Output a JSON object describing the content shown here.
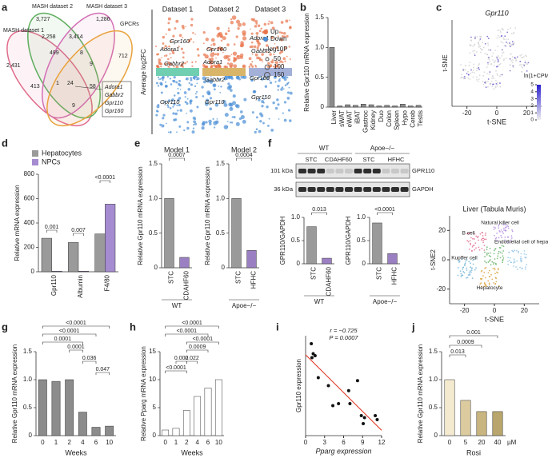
{
  "panel_labels": [
    "a",
    "b",
    "c",
    "d",
    "e",
    "f",
    "g",
    "h",
    "i",
    "j"
  ],
  "chart_data": [
    {
      "type": "venn",
      "set_labels": [
        "MASH dataset 1",
        "MASH dataset 2",
        "MASH dataset 3",
        "GPCRs"
      ],
      "counts": [
        "3,727",
        "1,286",
        "2,431",
        "2,258",
        "3,414",
        "712",
        "499",
        "8",
        "9",
        "413",
        "1",
        "24",
        "58",
        "9"
      ],
      "genes": [
        "Adora1",
        "Gabbr2",
        "Gpr110",
        "Gpr160"
      ]
    },
    {
      "type": "volcano",
      "datasets": [
        "Dataset 1",
        "Dataset 2",
        "Dataset 3"
      ],
      "ylabel": "Average log2FC",
      "gene_labels": [
        "Adora1",
        "Gpr160",
        "Gabbr2",
        "Gpr110",
        "Gpr160",
        "Adora1",
        "Gabbr2",
        "Gpr110",
        "Adora1",
        "Gabbr2",
        "Gpr160",
        "Gpr110"
      ],
      "legend": [
        "Up",
        "Down"
      ],
      "legend_colors": [
        "#e8734a",
        "#4a8fd6"
      ],
      "size_title": "−log10P",
      "size_ticks": [
        50,
        100,
        150
      ]
    },
    {
      "type": "bar",
      "ylabel": "Relative Gpr110 mRNA expression",
      "categories": [
        "Liver",
        "sWAT",
        "eWAT",
        "iBAT",
        "Gastroc",
        "Kidney",
        "Duo",
        "Colon",
        "Spleen",
        "Hypo",
        "Cereb",
        "Testis"
      ],
      "values": [
        1.0,
        0.02,
        0.04,
        0.03,
        0.05,
        0.04,
        0.02,
        0.03,
        0.02,
        0.05,
        0.02,
        0.03
      ],
      "color": "#8c8c8c",
      "ylim": [
        0,
        1.5
      ],
      "yticks": [
        0,
        0.5,
        {
          "value": 1,
          "label": "1.0"
        },
        1.5
      ]
    },
    {
      "type": "tsne",
      "title": "Gpr110",
      "xlabel": "t-SNE",
      "ylabel": "t-SNE",
      "xlim": [
        -30,
        30
      ],
      "xticks": [
        -20,
        0,
        20
      ],
      "legend_title": "ln(1+CPM)",
      "colorbar_ticks": [
        0,
        1,
        2,
        3,
        4,
        5
      ]
    },
    {
      "type": "bar",
      "ylabel": "Relative mRNA expression",
      "categories": [
        "Gpr110",
        "Albumin",
        "F4/80"
      ],
      "series": [
        {
          "name": "Hepatocytes",
          "color": "#9a9a9a",
          "values": [
            275,
            240,
            310
          ]
        },
        {
          "name": "NPCs",
          "color": "#a58bd0",
          "values": [
            5,
            5,
            555
          ]
        }
      ],
      "ylim": [
        0,
        800
      ],
      "yticks": [
        0,
        200,
        400,
        600,
        800
      ],
      "annotations": [
        "0.001",
        "0.007",
        "<0.0001"
      ]
    },
    {
      "type": "bar",
      "title": "Model 1",
      "ylabel": "Relative Gpr110 mRNA expression",
      "categories": [
        "STC",
        "CDAHF60"
      ],
      "values": [
        1.0,
        0.15
      ],
      "colors": [
        "#9a9a9a",
        "#9b7fc3"
      ],
      "ylim": [
        0,
        1.5
      ],
      "yticks": [
        0,
        0.5,
        {
          "value": 1,
          "label": "1.0"
        },
        1.5
      ],
      "annotations": [
        "0.0007"
      ],
      "group_label": "WT"
    },
    {
      "type": "bar",
      "title": "Model 2",
      "ylabel": "Relative Gpr110 mRNA expression",
      "categories": [
        "STC",
        "HFHC"
      ],
      "values": [
        1.0,
        0.25
      ],
      "colors": [
        "#9a9a9a",
        "#9b7fc3"
      ],
      "ylim": [
        0,
        1.5
      ],
      "yticks": [
        0,
        0.5,
        {
          "value": 1,
          "label": "1.0"
        },
        1.5
      ],
      "annotations": [
        "0.0004"
      ],
      "group_label": "Apoe−/−"
    },
    {
      "type": "blot",
      "groups": [
        "WT",
        "Apoe−/−"
      ],
      "lanes": [
        "STC",
        "CDAHF60",
        "STC",
        "HFHC"
      ],
      "markers": [
        "101 kDa",
        "36 kDa"
      ],
      "bands": [
        "GPR110",
        "GAPDH"
      ]
    },
    {
      "type": "bar",
      "ylabel": "GPR110/GAPDH",
      "categories": [
        "STC",
        "CDAHF60"
      ],
      "values": [
        0.8,
        0.12
      ],
      "colors": [
        "#9a9a9a",
        "#9b7fc3"
      ],
      "ylim": [
        0,
        1.0
      ],
      "yticks": [
        0,
        0.5,
        {
          "value": 1,
          "label": "1.0"
        }
      ],
      "annotations": [
        "0.013"
      ],
      "group_label": "WT"
    },
    {
      "type": "bar",
      "ylabel": "GPR110/GAPDH",
      "categories": [
        "STC",
        "HFHC"
      ],
      "values": [
        0.88,
        0.22
      ],
      "colors": [
        "#9a9a9a",
        "#9b7fc3"
      ],
      "ylim": [
        0,
        1.0
      ],
      "yticks": [
        0,
        0.5,
        {
          "value": 1,
          "label": "1.0"
        }
      ],
      "annotations": [
        "<0.0001"
      ],
      "group_label": "Apoe−/−"
    },
    {
      "type": "tsne",
      "title": "Liver (Tabula Muris)",
      "xlabel": "t-SNE",
      "ylabel": "t-SNE2",
      "xlim": [
        -30,
        30
      ],
      "xticks": [
        -20,
        0,
        20
      ],
      "ylim": [
        -30,
        30
      ],
      "yticks": [
        20,
        0,
        -20
      ],
      "cell_labels": [
        "Natural killer cell",
        "B cell",
        "Endothelial cell of hepatic sinusoid",
        "Kupffer cell",
        "Hepatocyte"
      ]
    },
    {
      "type": "bar",
      "ylabel": "Relative Gpr110 mRNA expression",
      "xlabel": "Weeks",
      "categories": [
        "0",
        "1",
        "2",
        "4",
        "6",
        "10"
      ],
      "values": [
        1.0,
        0.97,
        1.0,
        0.42,
        0.15,
        0.17
      ],
      "color": "#8c8c8c",
      "ylim": [
        0,
        1.5
      ],
      "yticks": [
        0,
        0.5,
        {
          "value": 1,
          "label": "1.0"
        },
        1.5
      ],
      "annotations": [
        "<0.0001",
        "<0.0001",
        "0.0001",
        "0.0001",
        "0.036",
        "0.047"
      ]
    },
    {
      "type": "bar",
      "ylabel": "Relative Pparg mRNA expression",
      "xlabel": "Weeks",
      "categories": [
        "0",
        "1",
        "2",
        "4",
        "6",
        "10"
      ],
      "values": [
        1,
        1.3,
        4.5,
        7,
        8.5,
        10
      ],
      "color": "#ffffff",
      "ylim": [
        0,
        15
      ],
      "yticks": [
        0,
        5,
        10,
        15
      ],
      "annotations": [
        "<0.0001",
        "<0.0001",
        "<0.0001",
        "0.0009",
        "0.002",
        "0.022",
        "<0.0001"
      ]
    },
    {
      "type": "scatter",
      "xlabel": "Pparg expression",
      "ylabel": "Gpr110 expression",
      "stats": [
        "r = −0.725",
        "P = 0.0007"
      ],
      "xlim": [
        0,
        12
      ],
      "xticks": [
        0,
        3,
        6,
        9,
        12
      ],
      "ylim": [
        0,
        1
      ],
      "line_color": "#e0301e",
      "x": [
        0.9,
        1.2,
        1.5,
        1.0,
        2.0,
        3.6,
        4.3,
        5.2,
        6.8,
        7.0,
        8.2,
        8.8,
        9.1,
        9.3,
        11.0,
        11.3
      ],
      "y": [
        0.92,
        0.82,
        0.8,
        0.78,
        0.58,
        0.5,
        0.3,
        0.32,
        0.45,
        0.32,
        0.55,
        0.2,
        0.12,
        0.18,
        0.2,
        0.16
      ]
    },
    {
      "type": "bar",
      "ylabel": "Relative Gpr110 mRNA expression",
      "xlabel": "Rosi",
      "unit": "µM",
      "categories": [
        "0",
        "5",
        "20",
        "40"
      ],
      "values": [
        1.0,
        0.63,
        0.43,
        0.43
      ],
      "colors": [
        "#f4ead0",
        "#dccb9f",
        "#c9b57f",
        "#b9a66c"
      ],
      "ylim": [
        0,
        1.5
      ],
      "yticks": [
        0,
        0.5,
        {
          "value": 1,
          "label": "1.0"
        },
        1.5
      ],
      "annotations": [
        "0.001",
        "0.0009",
        "0.013"
      ]
    }
  ]
}
